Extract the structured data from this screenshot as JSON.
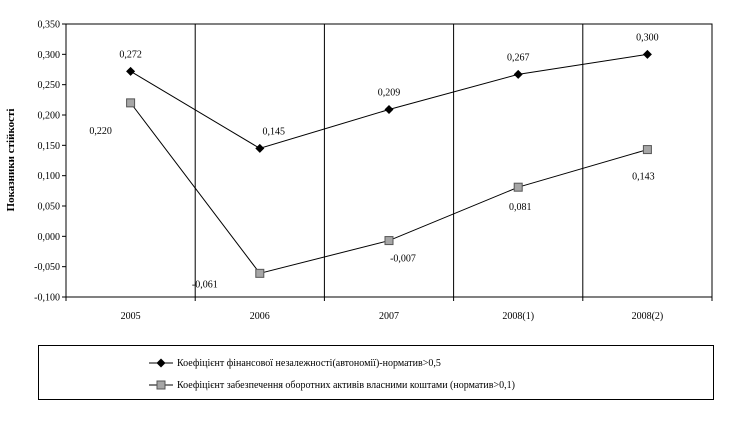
{
  "chart_data": {
    "type": "line",
    "title": "",
    "ylabel": "Показники стійкості",
    "xlabel": "",
    "ylim": [
      -0.1,
      0.35
    ],
    "yticks": [
      0.35,
      0.3,
      0.25,
      0.2,
      0.15,
      0.1,
      0.05,
      0.0,
      -0.05,
      -0.1
    ],
    "ytick_labels": [
      "0,350",
      "0,300",
      "0,250",
      "0,200",
      "0,150",
      "0,100",
      "0,050",
      "0,000",
      "-0,050",
      "-0,100"
    ],
    "categories": [
      "2005",
      "2006",
      "2007",
      "2008(1)",
      "2008(2)"
    ],
    "grid": "vertical",
    "legend_position": "bottom",
    "series": [
      {
        "name": "Коефіцієнт фінансової незалежності(автономії)-норматив>0,5",
        "marker": "diamond",
        "color": "#000000",
        "values": [
          0.272,
          0.145,
          0.209,
          0.267,
          0.3
        ],
        "labels": [
          "0,272",
          "0,145",
          "0,209",
          "0,267",
          "0,300"
        ]
      },
      {
        "name": "Коефіцієнт забезпечення оборотних активів власними коштами (норматив>0,1)",
        "marker": "square",
        "color": "#a6a6a6",
        "values": [
          0.22,
          -0.061,
          -0.007,
          0.081,
          0.143
        ],
        "labels": [
          "0,220",
          "-0,061",
          "-0,007",
          "0,081",
          "0,143"
        ]
      }
    ]
  }
}
